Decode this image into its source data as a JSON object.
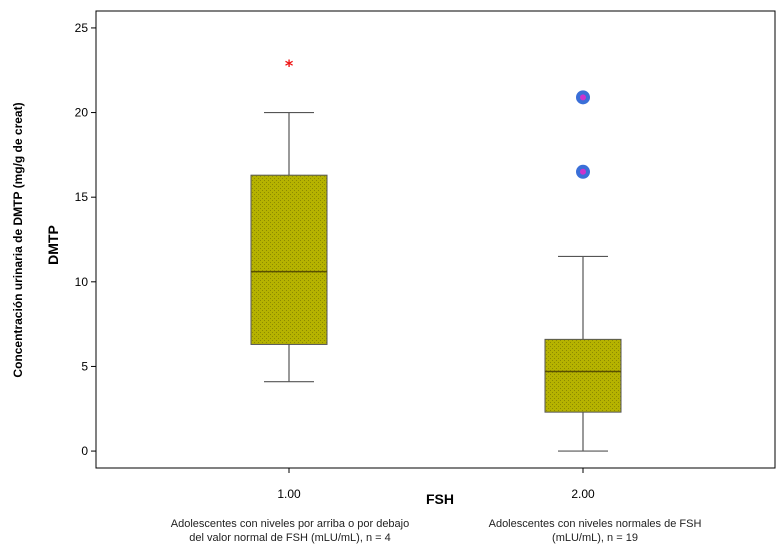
{
  "chart_data": {
    "type": "boxplot",
    "xlabel": "FSH",
    "ylabel_line1": "Concentración urinaria de DMTP (mg/g de creat)",
    "ylabel_line2": "DMTP",
    "ylim": [
      -1,
      26
    ],
    "yticks": [
      0,
      5,
      10,
      15,
      20,
      25
    ],
    "grid": false,
    "categories": [
      "1.00",
      "2.00"
    ],
    "boxes": [
      {
        "category": "1.00",
        "whisker_low": 4.1,
        "q1": 6.3,
        "median": 10.6,
        "q3": 16.3,
        "whisker_high": 20.0,
        "outliers": [],
        "extremes": [
          22.8
        ]
      },
      {
        "category": "2.00",
        "whisker_low": 0.0,
        "q1": 2.3,
        "median": 4.7,
        "q3": 6.6,
        "whisker_high": 11.5,
        "outliers": [
          16.5,
          20.9
        ],
        "extremes": []
      }
    ],
    "colors": {
      "box_fill": "#b5b200",
      "box_stroke": "#555555",
      "outlier": "#3a6fd8",
      "outlier_center": "#cc33cc",
      "extreme": "#ee1111"
    }
  },
  "captions": {
    "group1_line1": "Adolescentes con niveles por arriba o por debajo",
    "group1_line2": "del valor normal de FSH (mLU/mL), n = 4",
    "group2_line1": "Adolescentes con niveles normales de FSH",
    "group2_line2": "(mLU/mL), n = 19"
  }
}
